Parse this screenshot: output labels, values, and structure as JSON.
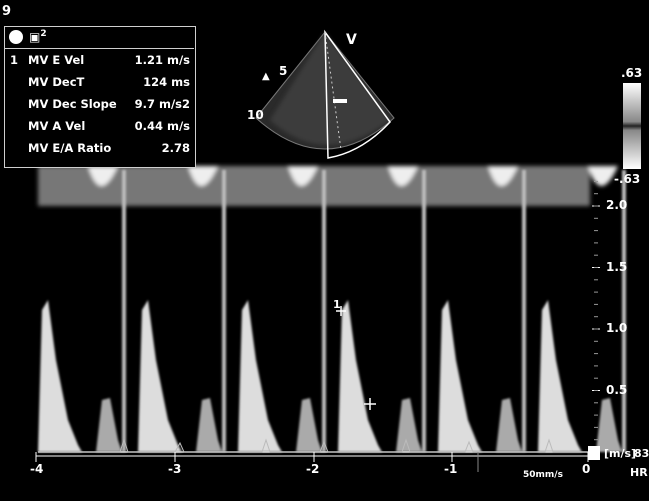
{
  "corner_label": "9",
  "header": {
    "icon": "mv-probe-icon",
    "mode_text": "2"
  },
  "measurements": [
    {
      "index": "1",
      "label": "MV E Vel",
      "value": "1.21 m/s"
    },
    {
      "index": "",
      "label": "MV DecT",
      "value": "124 ms"
    },
    {
      "index": "",
      "label": "MV Dec Slope",
      "value": "9.7 m/s2"
    },
    {
      "index": "",
      "label": "MV A Vel",
      "value": "0.44 m/s"
    },
    {
      "index": "",
      "label": "MV E/A Ratio",
      "value": "2.78"
    }
  ],
  "sector": {
    "label_v": "V",
    "depth_5": "5",
    "depth_10": "10"
  },
  "color_bar": {
    "top": ".63",
    "bottom": "-.63"
  },
  "velocity_axis": {
    "unit": "[m/s]",
    "ticks": [
      {
        "value": 2.0,
        "label": "2.0"
      },
      {
        "value": 1.5,
        "label": "1.5"
      },
      {
        "value": 1.0,
        "label": "1.0"
      },
      {
        "value": 0.5,
        "label": "0.5"
      }
    ]
  },
  "time_axis": {
    "ticks": [
      {
        "value": -4,
        "label": "-4"
      },
      {
        "value": -3,
        "label": "-3"
      },
      {
        "value": -2,
        "label": "-2"
      },
      {
        "value": -1,
        "label": "-1"
      },
      {
        "value": 0,
        "label": "0"
      }
    ],
    "sweep_speed": "50mm/s"
  },
  "hr": {
    "value": "83",
    "label": "HR"
  },
  "markers": {
    "e_marker": "1",
    "cursor_symbol": "+"
  }
}
